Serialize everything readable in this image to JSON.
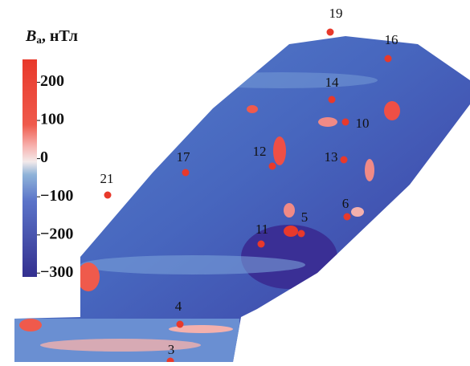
{
  "colorbar": {
    "title": [
      "B",
      "a",
      ", нТл"
    ],
    "lim": [
      -310,
      260
    ],
    "ticks": [
      200,
      100,
      0,
      {
        "value": -100,
        "label": "−100"
      },
      {
        "value": -200,
        "label": "−200"
      },
      {
        "value": -300,
        "label": "−300"
      }
    ]
  },
  "points": [
    {
      "label": "19"
    },
    {
      "label": "16"
    },
    {
      "label": "14"
    },
    {
      "label": "10"
    },
    {
      "label": "12"
    },
    {
      "label": "13"
    },
    {
      "label": "17"
    },
    {
      "label": "21"
    },
    {
      "label": "6"
    },
    {
      "label": "5"
    },
    {
      "label": "11"
    },
    {
      "label": "4"
    },
    {
      "label": "3"
    }
  ]
}
